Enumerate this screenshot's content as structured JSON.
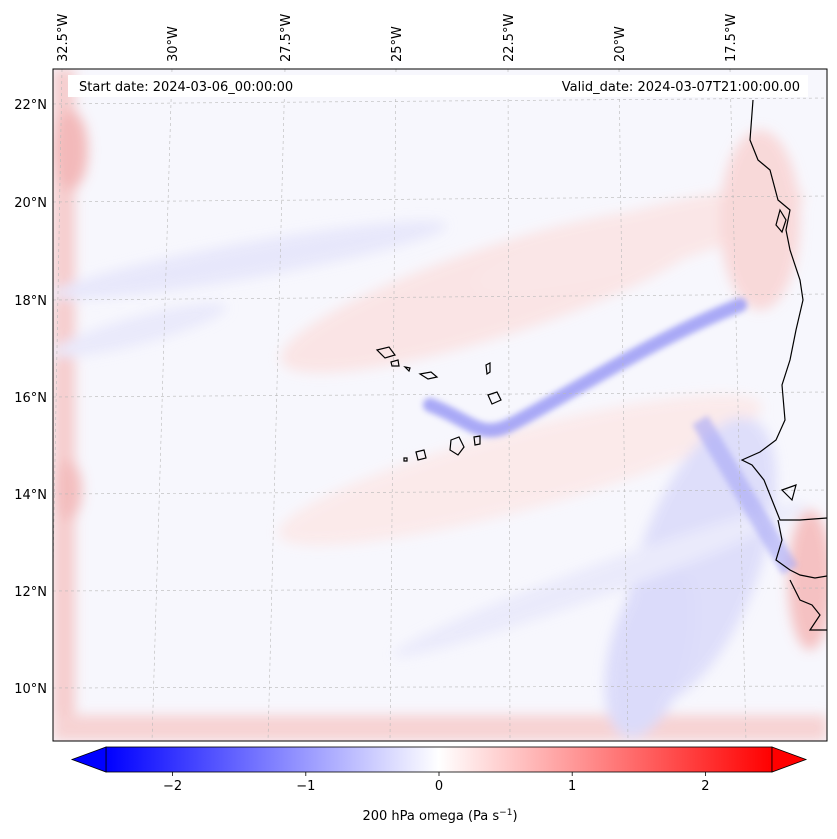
{
  "map": {
    "start_label": "Start date: 2024-03-06_00:00:00",
    "valid_label": "Valid_date: 2024-03-07T21:00:00.00",
    "lon_labels": [
      "32.5°W",
      "30°W",
      "27.5°W",
      "25°W",
      "22.5°W",
      "20°W",
      "17.5°W"
    ],
    "lat_labels": [
      "22°N",
      "20°N",
      "18°N",
      "16°N",
      "14°N",
      "12°N",
      "10°N"
    ],
    "field": "200 hPa omega",
    "colors": {
      "negative": "#0000ff",
      "zero": "#ffffff",
      "positive": "#ff0000",
      "coast": "#000000",
      "grid": "#b0b0b0"
    }
  },
  "colorbar": {
    "label": "200 hPa omega (Pa s",
    "label_sup": "−1",
    "label_close": ")",
    "tick_labels": [
      "−2",
      "−1",
      "0",
      "1",
      "2"
    ],
    "ticks": [
      -2,
      -1,
      0,
      1,
      2
    ],
    "vmin": -2.5,
    "vmax": 2.5,
    "extend": "both"
  }
}
